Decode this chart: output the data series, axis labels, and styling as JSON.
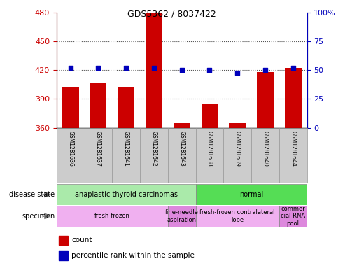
{
  "title": "GDS5362 / 8037422",
  "samples": [
    "GSM1281636",
    "GSM1281637",
    "GSM1281641",
    "GSM1281642",
    "GSM1281643",
    "GSM1281638",
    "GSM1281639",
    "GSM1281640",
    "GSM1281644"
  ],
  "counts": [
    403,
    407,
    402,
    480,
    365,
    385,
    365,
    418,
    422
  ],
  "percentile_ranks": [
    52,
    52,
    52,
    52,
    50,
    50,
    48,
    50,
    52
  ],
  "count_base": 360,
  "ylim_left": [
    360,
    480
  ],
  "ylim_right": [
    0,
    100
  ],
  "yticks_left": [
    360,
    390,
    420,
    450,
    480
  ],
  "yticks_right": [
    0,
    25,
    50,
    75,
    100
  ],
  "bar_color": "#cc0000",
  "dot_color": "#0000bb",
  "disease_state_groups": [
    {
      "label": "anaplastic thyroid carcinomas",
      "start": 0,
      "end": 5,
      "color": "#aaeaaa"
    },
    {
      "label": "normal",
      "start": 5,
      "end": 9,
      "color": "#55dd55"
    }
  ],
  "specimen_groups": [
    {
      "label": "fresh-frozen",
      "start": 0,
      "end": 4,
      "color": "#f0b0f0"
    },
    {
      "label": "fine-needle\naspiration",
      "start": 4,
      "end": 5,
      "color": "#dd88dd"
    },
    {
      "label": "fresh-frozen contralateral\nlobe",
      "start": 5,
      "end": 8,
      "color": "#f0b0f0"
    },
    {
      "label": "commer\ncial RNA\npool",
      "start": 8,
      "end": 9,
      "color": "#dd88dd"
    }
  ],
  "legend_count_label": "count",
  "legend_pct_label": "percentile rank within the sample",
  "left_ylabel_color": "#cc0000",
  "right_ylabel_color": "#0000bb",
  "grid_color": "#555555",
  "sample_box_color": "#cccccc",
  "sample_box_edge": "#999999",
  "fig_bg": "#ffffff"
}
